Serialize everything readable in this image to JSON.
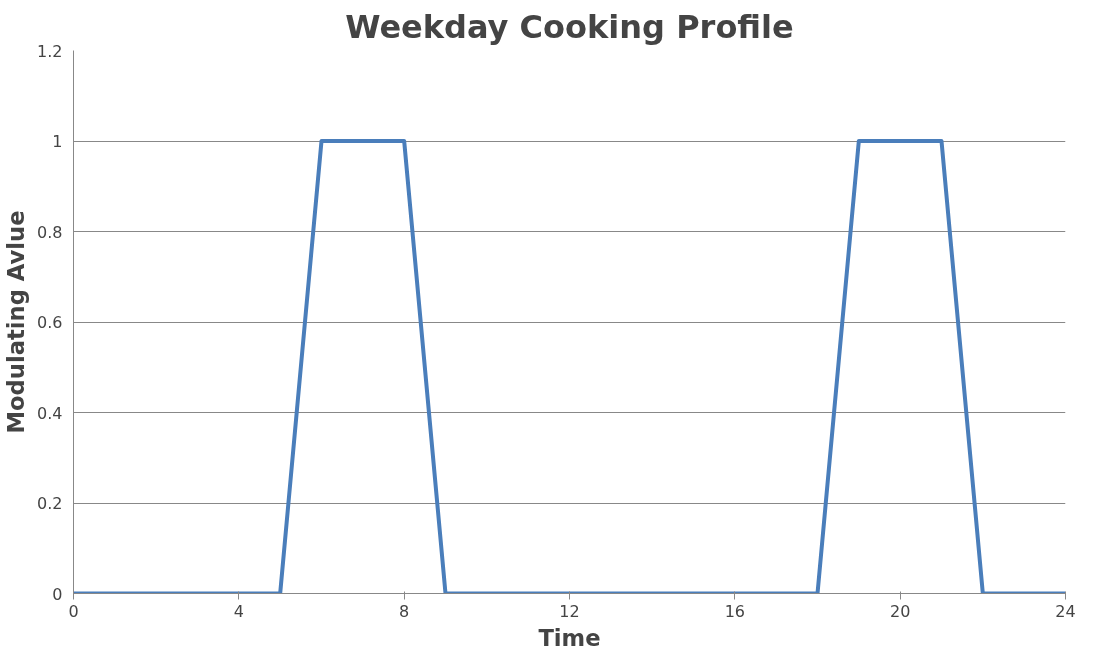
{
  "chart_data": {
    "type": "line",
    "title": "Weekday Cooking Profile",
    "xlabel": "Time",
    "ylabel": "Modulating Avlue",
    "x": [
      0,
      5,
      6,
      8,
      9,
      18,
      19,
      21,
      22,
      24
    ],
    "series": [
      {
        "color": "#4a7ebb",
        "values": [
          0,
          0,
          1,
          1,
          0,
          0,
          1,
          1,
          0,
          0
        ]
      }
    ],
    "xlim": [
      0,
      24
    ],
    "xticks": [
      0,
      4,
      8,
      12,
      16,
      20,
      24
    ],
    "ylim": [
      0,
      1.2
    ],
    "yticks": [
      0,
      0.2,
      0.4,
      0.6,
      0.8,
      1,
      1.2
    ],
    "grid": "y",
    "marker": "none",
    "line_style": "solid"
  }
}
